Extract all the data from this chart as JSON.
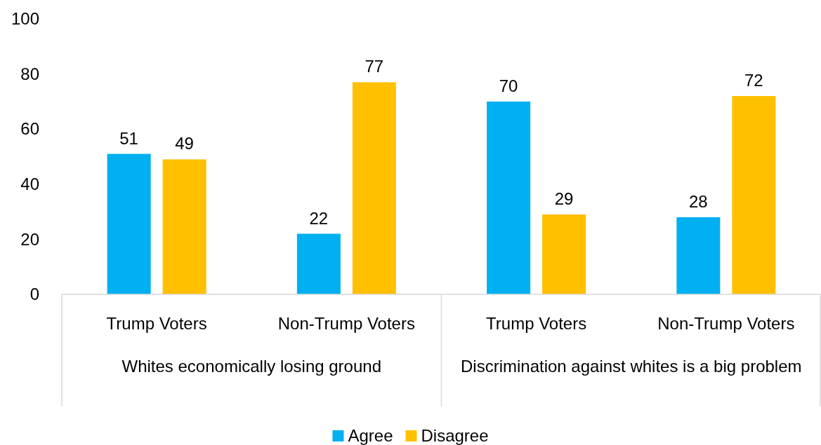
{
  "chart_data": {
    "type": "bar",
    "categories": [
      "Trump Voters",
      "Non-Trump Voters",
      "Trump Voters",
      "Non-Trump Voters"
    ],
    "series": [
      {
        "name": "Agree",
        "color": "#00b0f0",
        "values": [
          51,
          22,
          70,
          28
        ]
      },
      {
        "name": "Disagree",
        "color": "#ffc000",
        "values": [
          49,
          77,
          29,
          72
        ]
      }
    ],
    "ylim": [
      0,
      100
    ],
    "yticks": [
      0,
      20,
      40,
      60,
      80,
      100
    ],
    "data_labels": true,
    "legend": "bottom",
    "grid": false,
    "annotations": [
      "Whites economically losing ground",
      "Discrimination against whites is a big problem"
    ]
  }
}
